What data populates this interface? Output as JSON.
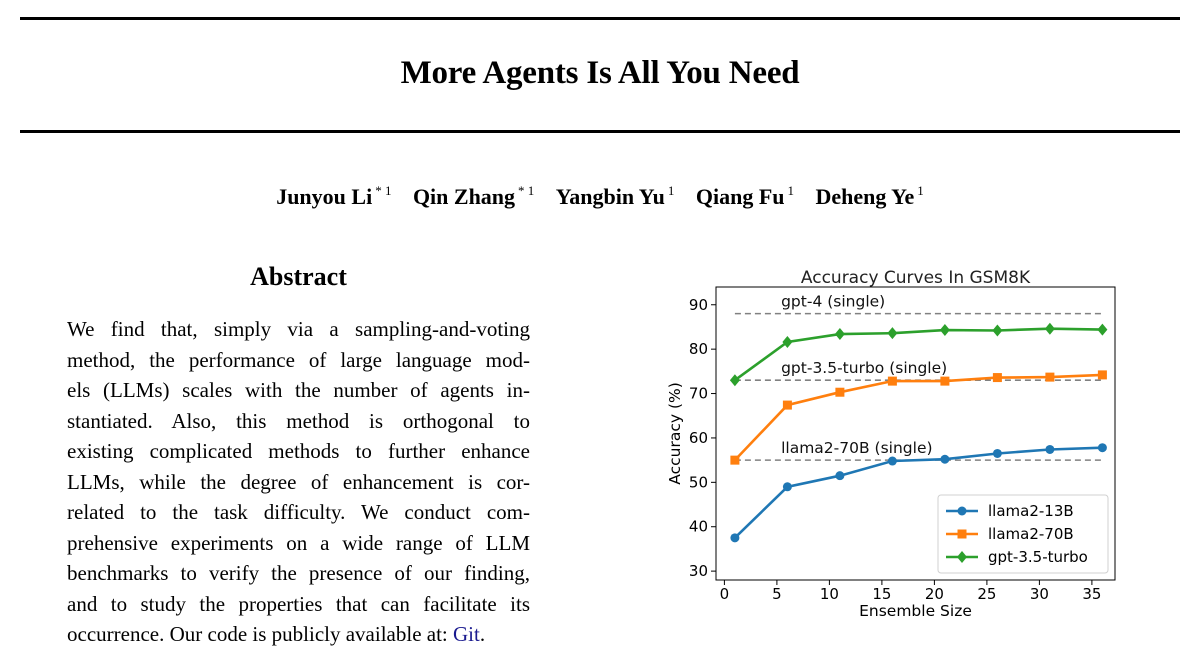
{
  "paper": {
    "title": "More Agents Is All You Need",
    "authors": [
      {
        "name": "Junyou Li",
        "affiliation": "* 1"
      },
      {
        "name": "Qin Zhang",
        "affiliation": "* 1"
      },
      {
        "name": "Yangbin Yu",
        "affiliation": "1"
      },
      {
        "name": "Qiang Fu",
        "affiliation": "1"
      },
      {
        "name": "Deheng Ye",
        "affiliation": "1"
      }
    ],
    "abstract_heading": "Abstract",
    "abstract_lines": [
      "We find that, simply via a sampling-and-voting",
      "method, the performance of large language mod-",
      "els (LLMs) scales with the number of agents in-",
      "stantiated.  Also, this method is orthogonal to",
      "existing complicated methods to further enhance",
      "LLMs, while the degree of enhancement is cor-",
      "related to the task difficulty.  We conduct com-",
      "prehensive experiments on a wide range of LLM",
      "benchmarks to verify the presence of our finding,",
      "and to study the properties that can facilitate its"
    ],
    "abstract_last_line": "occurrence. Our code is publicly available at: ",
    "code_link_label": "Git",
    "abstract_end": "."
  },
  "chart_data": {
    "type": "line",
    "title": "Accuracy Curves In GSM8K",
    "xlabel": "Ensemble Size",
    "ylabel": "Accuracy (%)",
    "xlim": [
      -0.8,
      37.2
    ],
    "ylim": [
      28,
      94
    ],
    "xticks": [
      0,
      5,
      10,
      15,
      20,
      25,
      30,
      35
    ],
    "yticks": [
      30,
      40,
      50,
      60,
      70,
      80,
      90
    ],
    "grid": false,
    "legend_position": "lower-right",
    "x": [
      1,
      6,
      11,
      16,
      21,
      26,
      31,
      36
    ],
    "series": [
      {
        "name": "llama2-13B",
        "color": "#1f77b4",
        "marker": "circle",
        "values": [
          37.5,
          49.0,
          51.5,
          54.8,
          55.2,
          56.5,
          57.4,
          57.8
        ]
      },
      {
        "name": "llama2-70B",
        "color": "#ff7f0e",
        "marker": "square",
        "values": [
          55.0,
          67.4,
          70.3,
          72.8,
          72.8,
          73.6,
          73.7,
          74.2
        ]
      },
      {
        "name": "gpt-3.5-turbo",
        "color": "#2ca02c",
        "marker": "diamond",
        "values": [
          73.0,
          81.6,
          83.4,
          83.6,
          84.3,
          84.2,
          84.6,
          84.4
        ]
      }
    ],
    "reference_lines": [
      {
        "label": "gpt-4 (single)",
        "y": 88.0
      },
      {
        "label": "gpt-3.5-turbo (single)",
        "y": 73.0
      },
      {
        "label": "llama2-70B (single)",
        "y": 55.0
      }
    ],
    "reference_line_color": "#808080"
  }
}
